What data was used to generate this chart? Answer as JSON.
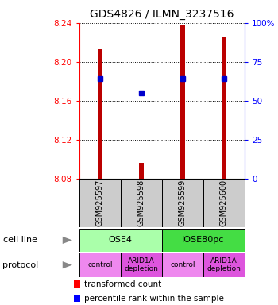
{
  "title": "GDS4826 / ILMN_3237516",
  "samples": [
    "GSM925597",
    "GSM925598",
    "GSM925599",
    "GSM925600"
  ],
  "bar_values": [
    8.213,
    8.096,
    8.238,
    8.225
  ],
  "bar_base": 8.08,
  "percentile_values": [
    8.183,
    8.168,
    8.183,
    8.183
  ],
  "ylim": [
    8.08,
    8.24
  ],
  "yticks": [
    8.08,
    8.12,
    8.16,
    8.2,
    8.24
  ],
  "ytick_labels": [
    "8.08",
    "8.12",
    "8.16",
    "8.20",
    "8.24"
  ],
  "right_yticks": [
    0,
    25,
    50,
    75,
    100
  ],
  "right_ytick_labels": [
    "0",
    "25",
    "50",
    "75",
    "100%"
  ],
  "bar_color": "#bb0000",
  "percentile_color": "#0000cc",
  "cell_line_groups": [
    {
      "label": "OSE4",
      "color": "#aaffaa",
      "start": 0,
      "end": 1
    },
    {
      "label": "IOSE80pc",
      "color": "#44dd44",
      "start": 2,
      "end": 3
    }
  ],
  "protocol_colors": [
    "#ee88ee",
    "#dd55dd",
    "#ee88ee",
    "#dd55dd"
  ],
  "protocol_labels": [
    "control",
    "ARID1A\ndepletion",
    "control",
    "ARID1A\ndepletion"
  ],
  "legend_red_label": "transformed count",
  "legend_blue_label": "percentile rank within the sample",
  "cell_line_row_label": "cell line",
  "protocol_row_label": "protocol",
  "sample_box_color": "#cccccc",
  "bar_width": 0.12
}
